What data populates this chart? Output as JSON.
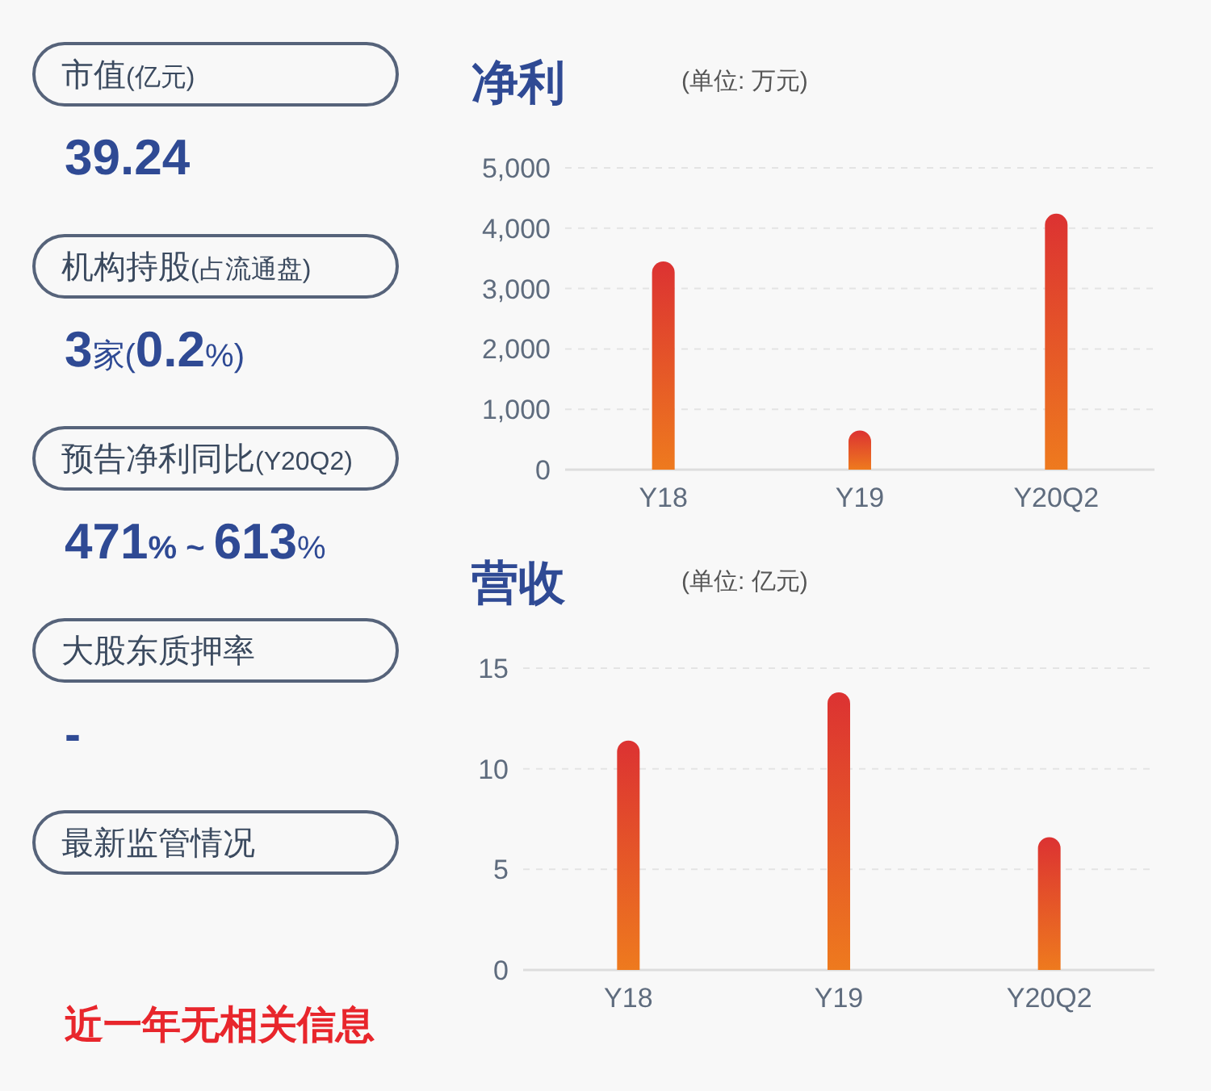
{
  "chart_data": [
    {
      "type": "other",
      "annotations": [
        "市值(亿元)",
        "39.24",
        "机构持股(占流通盘)",
        "3家(0.2%)",
        "预告净利同比(Y20Q2)",
        "471% ~ 613%",
        "大股东质押率",
        "-",
        "最新监管情况",
        "近一年无相关信息"
      ]
    },
    {
      "type": "bar",
      "title": "净利",
      "subtitle": "(单位: 万元)",
      "categories": [
        "Y18",
        "Y19",
        "Y20Q2"
      ],
      "values": [
        3450,
        650,
        4240
      ],
      "color": "#dc3232",
      "ylim": [
        0,
        5000
      ],
      "yticks": [
        0,
        {
          "value": 1000,
          "label": "1,000"
        },
        {
          "value": 2000,
          "label": "2,000"
        },
        {
          "value": 3000,
          "label": "3,000"
        },
        {
          "value": 4000,
          "label": "4,000"
        },
        {
          "value": 5000,
          "label": "5,000"
        }
      ],
      "grid": "y"
    },
    {
      "type": "bar",
      "title": "营收",
      "subtitle": "(单位: 亿元)",
      "categories": [
        "Y18",
        "Y19",
        "Y20Q2"
      ],
      "values": [
        11.4,
        13.8,
        6.6
      ],
      "color": "#dc3232",
      "ylim": [
        0,
        15
      ],
      "yticks": [
        0,
        5,
        10,
        15
      ],
      "grid": "y"
    }
  ]
}
